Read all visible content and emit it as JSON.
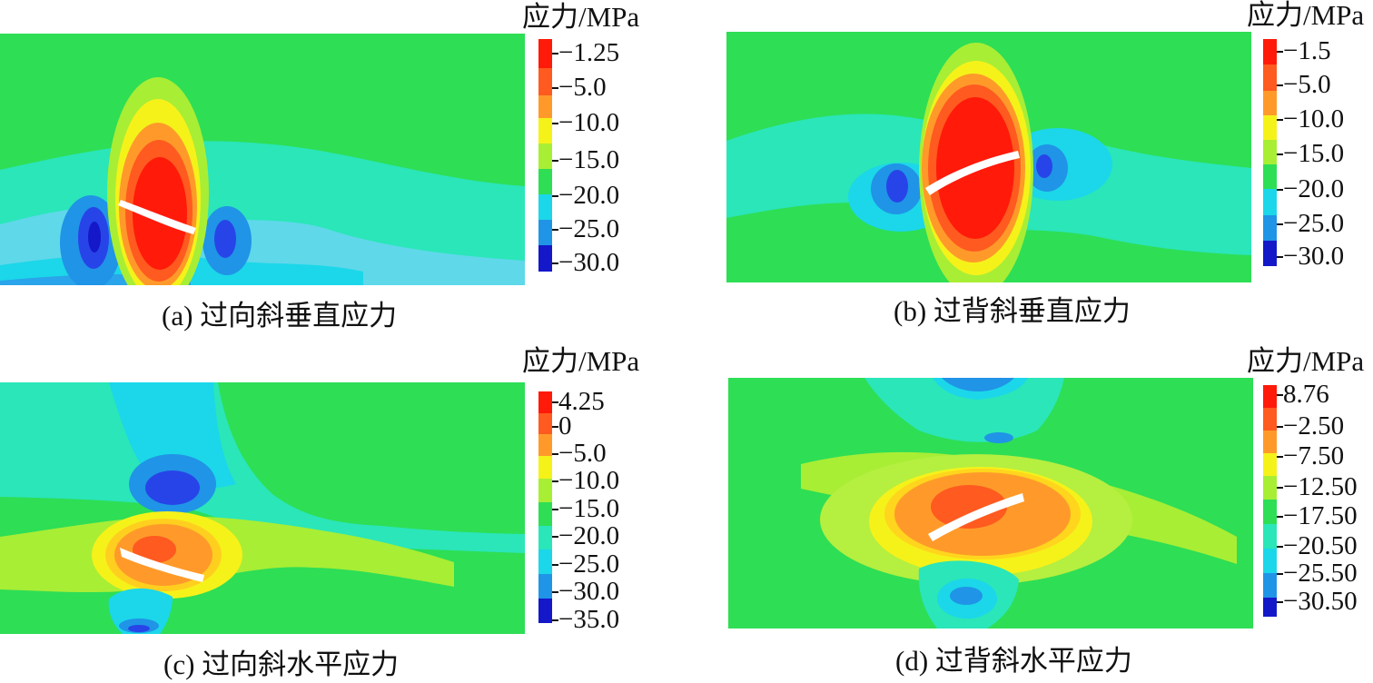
{
  "panels": [
    {
      "caption": "(a) 过向斜垂直应力",
      "unit_label": "应力/MPa",
      "legend_values": [
        "−1.25",
        "−5.0",
        "−10.0",
        "−15.0",
        "−20.0",
        "−25.0",
        "−30.0"
      ]
    },
    {
      "caption": "(b) 过背斜垂直应力",
      "unit_label": "应力/MPa",
      "legend_values": [
        "−1.5",
        "−5.0",
        "−10.0",
        "−15.0",
        "−20.0",
        "−25.0",
        "−30.0"
      ]
    },
    {
      "caption": "(c) 过向斜水平应力",
      "unit_label": "应力/MPa",
      "legend_values": [
        "4.25",
        "0",
        "−5.0",
        "−10.0",
        "−15.0",
        "−20.0",
        "−25.0",
        "−30.0",
        "−35.0"
      ]
    },
    {
      "caption": "(d) 过背斜水平应力",
      "unit_label": "应力/MPa",
      "legend_values": [
        "8.76",
        "−2.50",
        "−7.50",
        "−12.50",
        "−17.50",
        "−20.50",
        "−25.50",
        "−30.50"
      ]
    }
  ],
  "colors": {
    "red": "#ff1a0a",
    "orange_red": "#ff5a1f",
    "orange": "#ff9a2a",
    "yellow": "#f5f21a",
    "lime": "#a8ee35",
    "green": "#2ede55",
    "cyan_green": "#2ae6b9",
    "cyan": "#1bd7e9",
    "blue_light": "#2094e6",
    "blue": "#2744e8",
    "blue_deep": "#1418c9"
  }
}
